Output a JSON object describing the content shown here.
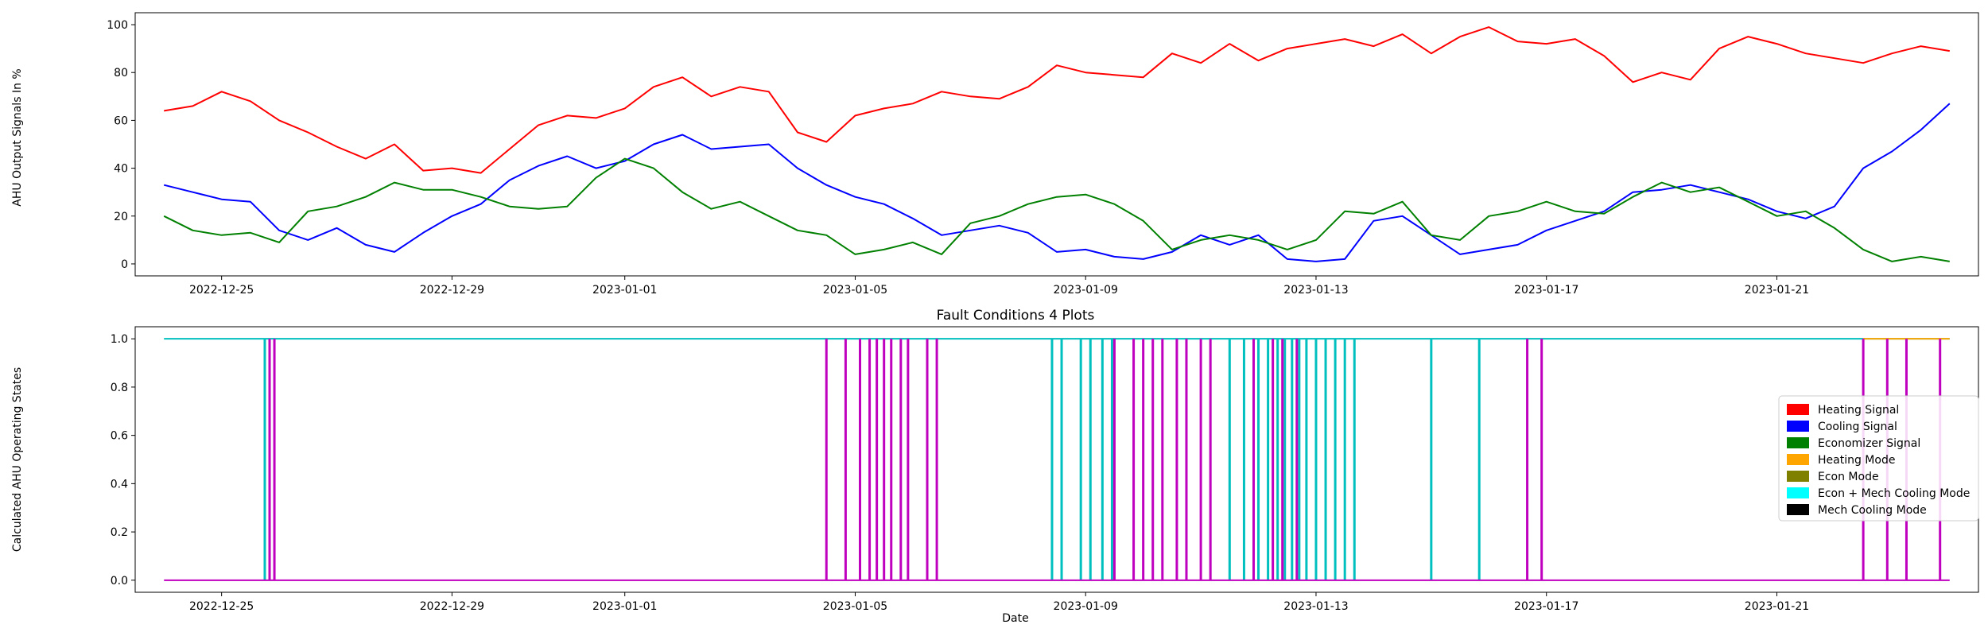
{
  "chart_data": [
    {
      "type": "line",
      "title": "",
      "xlabel": "",
      "ylabel": "AHU Output Signals In %",
      "xlim": [
        "2022-12-23T12:00",
        "2023-01-24T12:00"
      ],
      "ylim": [
        -5,
        105
      ],
      "yticks": [
        0,
        20,
        40,
        60,
        80,
        100
      ],
      "xticks": [
        "2022-12-25",
        "2022-12-29",
        "2023-01-01",
        "2023-01-05",
        "2023-01-09",
        "2023-01-13",
        "2023-01-17",
        "2023-01-21"
      ],
      "series": [
        {
          "color": "#ff0000",
          "points": [
            [
              "2022-12-24",
              64
            ],
            [
              "2022-12-24T12:00",
              66
            ],
            [
              "2022-12-25",
              72
            ],
            [
              "2022-12-25T12:00",
              68
            ],
            [
              "2022-12-26",
              60
            ],
            [
              "2022-12-26T12:00",
              55
            ],
            [
              "2022-12-27",
              49
            ],
            [
              "2022-12-27T12:00",
              44
            ],
            [
              "2022-12-28",
              50
            ],
            [
              "2022-12-28T12:00",
              39
            ],
            [
              "2022-12-29",
              40
            ],
            [
              "2022-12-29T12:00",
              38
            ],
            [
              "2022-12-30",
              48
            ],
            [
              "2022-12-30T12:00",
              58
            ],
            [
              "2022-12-31",
              62
            ],
            [
              "2022-12-31T12:00",
              61
            ],
            [
              "2023-01-01",
              65
            ],
            [
              "2023-01-01T12:00",
              74
            ],
            [
              "2023-01-02",
              78
            ],
            [
              "2023-01-02T12:00",
              70
            ],
            [
              "2023-01-03",
              74
            ],
            [
              "2023-01-03T12:00",
              72
            ],
            [
              "2023-01-04",
              55
            ],
            [
              "2023-01-04T12:00",
              51
            ],
            [
              "2023-01-05",
              62
            ],
            [
              "2023-01-05T12:00",
              65
            ],
            [
              "2023-01-06",
              67
            ],
            [
              "2023-01-06T12:00",
              72
            ],
            [
              "2023-01-07",
              70
            ],
            [
              "2023-01-07T12:00",
              69
            ],
            [
              "2023-01-08",
              74
            ],
            [
              "2023-01-08T12:00",
              83
            ],
            [
              "2023-01-09",
              80
            ],
            [
              "2023-01-09T12:00",
              79
            ],
            [
              "2023-01-10",
              78
            ],
            [
              "2023-01-10T12:00",
              88
            ],
            [
              "2023-01-11",
              84
            ],
            [
              "2023-01-11T12:00",
              92
            ],
            [
              "2023-01-12",
              85
            ],
            [
              "2023-01-12T12:00",
              90
            ],
            [
              "2023-01-13",
              92
            ],
            [
              "2023-01-13T12:00",
              94
            ],
            [
              "2023-01-14",
              91
            ],
            [
              "2023-01-14T12:00",
              96
            ],
            [
              "2023-01-15",
              88
            ],
            [
              "2023-01-15T12:00",
              95
            ],
            [
              "2023-01-16",
              99
            ],
            [
              "2023-01-16T12:00",
              93
            ],
            [
              "2023-01-17",
              92
            ],
            [
              "2023-01-17T12:00",
              94
            ],
            [
              "2023-01-18",
              87
            ],
            [
              "2023-01-18T12:00",
              76
            ],
            [
              "2023-01-19",
              80
            ],
            [
              "2023-01-19T12:00",
              77
            ],
            [
              "2023-01-20",
              90
            ],
            [
              "2023-01-20T12:00",
              95
            ],
            [
              "2023-01-21",
              92
            ],
            [
              "2023-01-21T12:00",
              88
            ],
            [
              "2023-01-22",
              86
            ],
            [
              "2023-01-22T12:00",
              84
            ],
            [
              "2023-01-23",
              88
            ],
            [
              "2023-01-23T12:00",
              91
            ],
            [
              "2023-01-24",
              89
            ]
          ]
        },
        {
          "color": "#0000ff",
          "points": [
            [
              "2022-12-24",
              33
            ],
            [
              "2022-12-24T12:00",
              30
            ],
            [
              "2022-12-25",
              27
            ],
            [
              "2022-12-25T12:00",
              26
            ],
            [
              "2022-12-26",
              14
            ],
            [
              "2022-12-26T12:00",
              10
            ],
            [
              "2022-12-27",
              15
            ],
            [
              "2022-12-27T12:00",
              8
            ],
            [
              "2022-12-28",
              5
            ],
            [
              "2022-12-28T12:00",
              13
            ],
            [
              "2022-12-29",
              20
            ],
            [
              "2022-12-29T12:00",
              25
            ],
            [
              "2022-12-30",
              35
            ],
            [
              "2022-12-30T12:00",
              41
            ],
            [
              "2022-12-31",
              45
            ],
            [
              "2022-12-31T12:00",
              40
            ],
            [
              "2023-01-01",
              43
            ],
            [
              "2023-01-01T12:00",
              50
            ],
            [
              "2023-01-02",
              54
            ],
            [
              "2023-01-02T12:00",
              48
            ],
            [
              "2023-01-03",
              49
            ],
            [
              "2023-01-03T12:00",
              50
            ],
            [
              "2023-01-04",
              40
            ],
            [
              "2023-01-04T12:00",
              33
            ],
            [
              "2023-01-05",
              28
            ],
            [
              "2023-01-05T12:00",
              25
            ],
            [
              "2023-01-06",
              19
            ],
            [
              "2023-01-06T12:00",
              12
            ],
            [
              "2023-01-07",
              14
            ],
            [
              "2023-01-07T12:00",
              16
            ],
            [
              "2023-01-08",
              13
            ],
            [
              "2023-01-08T12:00",
              5
            ],
            [
              "2023-01-09",
              6
            ],
            [
              "2023-01-09T12:00",
              3
            ],
            [
              "2023-01-10",
              2
            ],
            [
              "2023-01-10T12:00",
              5
            ],
            [
              "2023-01-11",
              12
            ],
            [
              "2023-01-11T12:00",
              8
            ],
            [
              "2023-01-12",
              12
            ],
            [
              "2023-01-12T12:00",
              2
            ],
            [
              "2023-01-13",
              1
            ],
            [
              "2023-01-13T12:00",
              2
            ],
            [
              "2023-01-14",
              18
            ],
            [
              "2023-01-14T12:00",
              20
            ],
            [
              "2023-01-15",
              12
            ],
            [
              "2023-01-15T12:00",
              4
            ],
            [
              "2023-01-16",
              6
            ],
            [
              "2023-01-16T12:00",
              8
            ],
            [
              "2023-01-17",
              14
            ],
            [
              "2023-01-17T12:00",
              18
            ],
            [
              "2023-01-18",
              22
            ],
            [
              "2023-01-18T12:00",
              30
            ],
            [
              "2023-01-19",
              31
            ],
            [
              "2023-01-19T12:00",
              33
            ],
            [
              "2023-01-20",
              30
            ],
            [
              "2023-01-20T12:00",
              27
            ],
            [
              "2023-01-21",
              22
            ],
            [
              "2023-01-21T12:00",
              19
            ],
            [
              "2023-01-22",
              24
            ],
            [
              "2023-01-22T12:00",
              40
            ],
            [
              "2023-01-23",
              47
            ],
            [
              "2023-01-23T12:00",
              56
            ],
            [
              "2023-01-24",
              67
            ]
          ]
        },
        {
          "color": "#008000",
          "points": [
            [
              "2022-12-24",
              20
            ],
            [
              "2022-12-24T12:00",
              14
            ],
            [
              "2022-12-25",
              12
            ],
            [
              "2022-12-25T12:00",
              13
            ],
            [
              "2022-12-26",
              9
            ],
            [
              "2022-12-26T12:00",
              22
            ],
            [
              "2022-12-27",
              24
            ],
            [
              "2022-12-27T12:00",
              28
            ],
            [
              "2022-12-28",
              34
            ],
            [
              "2022-12-28T12:00",
              31
            ],
            [
              "2022-12-29",
              31
            ],
            [
              "2022-12-29T12:00",
              28
            ],
            [
              "2022-12-30",
              24
            ],
            [
              "2022-12-30T12:00",
              23
            ],
            [
              "2022-12-31",
              24
            ],
            [
              "2022-12-31T12:00",
              36
            ],
            [
              "2023-01-01",
              44
            ],
            [
              "2023-01-01T12:00",
              40
            ],
            [
              "2023-01-02",
              30
            ],
            [
              "2023-01-02T12:00",
              23
            ],
            [
              "2023-01-03",
              26
            ],
            [
              "2023-01-03T12:00",
              20
            ],
            [
              "2023-01-04",
              14
            ],
            [
              "2023-01-04T12:00",
              12
            ],
            [
              "2023-01-05",
              4
            ],
            [
              "2023-01-05T12:00",
              6
            ],
            [
              "2023-01-06",
              9
            ],
            [
              "2023-01-06T12:00",
              4
            ],
            [
              "2023-01-07",
              17
            ],
            [
              "2023-01-07T12:00",
              20
            ],
            [
              "2023-01-08",
              25
            ],
            [
              "2023-01-08T12:00",
              28
            ],
            [
              "2023-01-09",
              29
            ],
            [
              "2023-01-09T12:00",
              25
            ],
            [
              "2023-01-10",
              18
            ],
            [
              "2023-01-10T12:00",
              6
            ],
            [
              "2023-01-11",
              10
            ],
            [
              "2023-01-11T12:00",
              12
            ],
            [
              "2023-01-12",
              10
            ],
            [
              "2023-01-12T12:00",
              6
            ],
            [
              "2023-01-13",
              10
            ],
            [
              "2023-01-13T12:00",
              22
            ],
            [
              "2023-01-14",
              21
            ],
            [
              "2023-01-14T12:00",
              26
            ],
            [
              "2023-01-15",
              12
            ],
            [
              "2023-01-15T12:00",
              10
            ],
            [
              "2023-01-16",
              20
            ],
            [
              "2023-01-16T12:00",
              22
            ],
            [
              "2023-01-17",
              26
            ],
            [
              "2023-01-17T12:00",
              22
            ],
            [
              "2023-01-18",
              21
            ],
            [
              "2023-01-18T12:00",
              28
            ],
            [
              "2023-01-19",
              34
            ],
            [
              "2023-01-19T12:00",
              30
            ],
            [
              "2023-01-20",
              32
            ],
            [
              "2023-01-20T12:00",
              26
            ],
            [
              "2023-01-21",
              20
            ],
            [
              "2023-01-21T12:00",
              22
            ],
            [
              "2023-01-22",
              15
            ],
            [
              "2023-01-22T12:00",
              6
            ],
            [
              "2023-01-23",
              1
            ],
            [
              "2023-01-23T12:00",
              3
            ],
            [
              "2023-01-24",
              1
            ]
          ]
        }
      ]
    },
    {
      "type": "line",
      "title": "Fault Conditions 4 Plots",
      "xlabel": "Date",
      "ylabel": "Calculated AHU Operating States",
      "xlim": [
        "2022-12-23T12:00",
        "2023-01-24T12:00"
      ],
      "ylim": [
        -0.05,
        1.05
      ],
      "yticks": [
        0.0,
        0.2,
        0.4,
        0.6,
        0.8,
        1.0
      ],
      "xticks": [
        "2022-12-25",
        "2022-12-29",
        "2023-01-01",
        "2023-01-05",
        "2023-01-09",
        "2023-01-13",
        "2023-01-17",
        "2023-01-21"
      ],
      "baselines": [
        {
          "color": "#00bfbf",
          "value": 1.0
        },
        {
          "color": "#ffa500",
          "value": 1.0,
          "from": "2023-01-22T12:00",
          "to": "2023-01-24"
        },
        {
          "color": "#bf00bf",
          "value": 0.0
        }
      ],
      "cyan_drops": [
        "2022-12-25T18:00",
        "2023-01-08T10:00",
        "2023-01-08T14:00",
        "2023-01-08T22:00",
        "2023-01-09T02:00",
        "2023-01-09T07:00",
        "2023-01-09T11:00",
        "2023-01-10T18:00",
        "2023-01-11T12:00",
        "2023-01-11T18:00",
        "2023-01-12T00:00",
        "2023-01-12T04:00",
        "2023-01-12T08:00",
        "2023-01-12T11:00",
        "2023-01-12T14:00",
        "2023-01-12T17:00",
        "2023-01-12T20:00",
        "2023-01-13T00:00",
        "2023-01-13T04:00",
        "2023-01-13T08:00",
        "2023-01-13T12:00",
        "2023-01-13T16:00",
        "2023-01-15T00:00",
        "2023-01-15T20:00"
      ],
      "magenta_spikes": [
        "2022-12-25T20:00",
        "2022-12-25T22:00",
        "2023-01-04T12:00",
        "2023-01-04T20:00",
        "2023-01-05T02:00",
        "2023-01-05T06:00",
        "2023-01-05T09:00",
        "2023-01-05T12:00",
        "2023-01-05T15:00",
        "2023-01-05T19:00",
        "2023-01-05T22:00",
        "2023-01-06T06:00",
        "2023-01-06T10:00",
        "2023-01-09T12:00",
        "2023-01-09T20:00",
        "2023-01-10T00:00",
        "2023-01-10T04:00",
        "2023-01-10T08:00",
        "2023-01-10T14:00",
        "2023-01-10T18:00",
        "2023-01-11T00:00",
        "2023-01-11T04:00",
        "2023-01-11T22:00",
        "2023-01-12T06:00",
        "2023-01-12T10:00",
        "2023-01-12T16:00",
        "2023-01-16T16:00",
        "2023-01-16T22:00",
        "2023-01-22T12:00",
        "2023-01-22T22:00",
        "2023-01-23T06:00",
        "2023-01-23T20:00"
      ]
    }
  ],
  "legend": {
    "placement": "center-right",
    "entries": [
      {
        "label": "Heating Signal",
        "color": "#ff0000"
      },
      {
        "label": "Cooling Signal",
        "color": "#0000ff"
      },
      {
        "label": "Economizer Signal",
        "color": "#008000"
      },
      {
        "label": "Heating Mode",
        "color": "#ffa500"
      },
      {
        "label": "Econ Mode",
        "color": "#808000"
      },
      {
        "label": "Econ + Mech Cooling Mode",
        "color": "#00ffff"
      },
      {
        "label": "Mech Cooling Mode",
        "color": "#000000"
      }
    ]
  }
}
